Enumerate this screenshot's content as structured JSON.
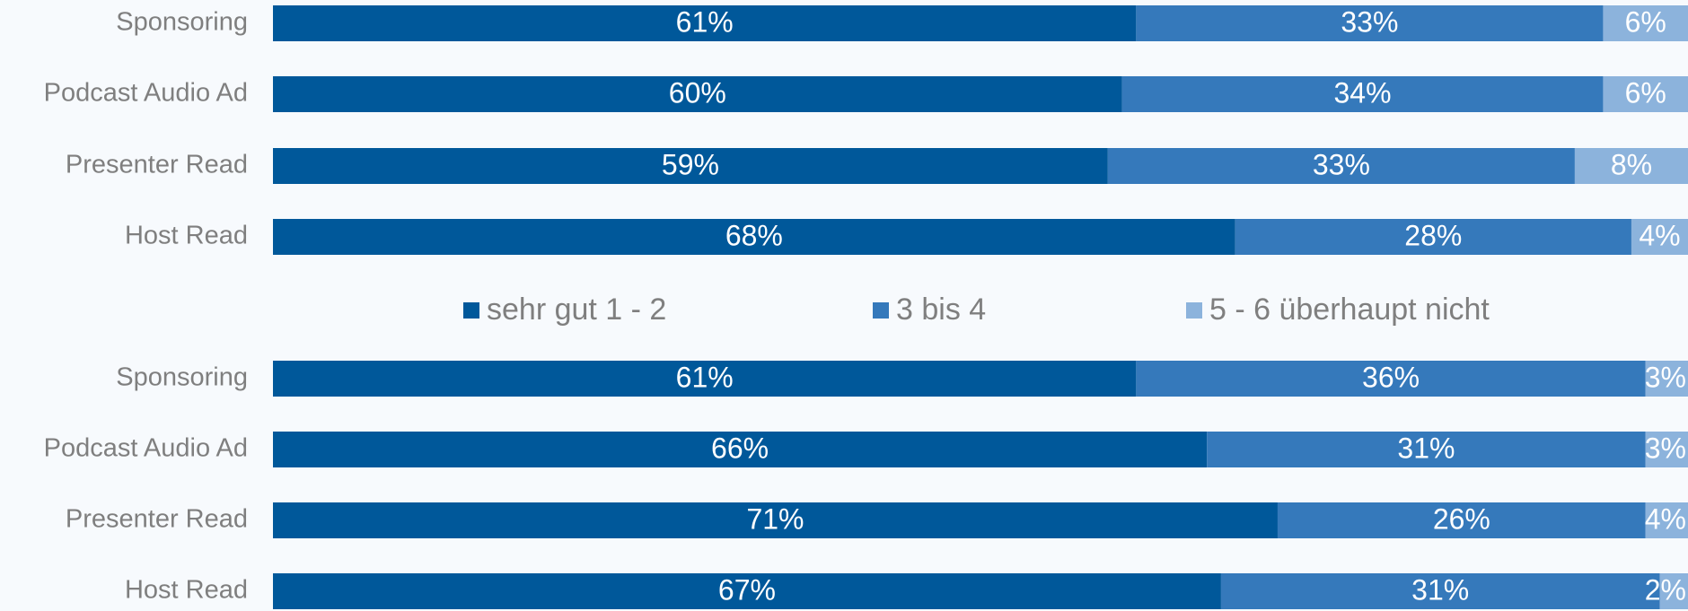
{
  "legend": {
    "items": [
      {
        "name": "sehr gut 1 - 2",
        "color": "#00589a"
      },
      {
        "name": "3 bis 4",
        "color": "#3579bb"
      },
      {
        "name": "5 - 6 überhaupt nicht",
        "color": "#8cb3dc"
      }
    ]
  },
  "chart_data": [
    {
      "type": "bar",
      "orientation": "horizontal",
      "stacked": true,
      "xlim": [
        0,
        100
      ],
      "categories": [
        "Sponsoring",
        "Podcast Audio Ad",
        "Presenter Read",
        "Host Read"
      ],
      "series": [
        {
          "values": [
            61,
            60,
            59,
            68
          ],
          "value_labels": [
            "61%",
            "60%",
            "59%",
            "68%"
          ]
        },
        {
          "values": [
            33,
            34,
            33,
            28
          ],
          "value_labels": [
            "33%",
            "34%",
            "33%",
            "28%"
          ]
        },
        {
          "values": [
            6,
            6,
            8,
            4
          ],
          "value_labels": [
            "6%",
            "6%",
            "8%",
            "4%"
          ]
        }
      ]
    },
    {
      "type": "bar",
      "orientation": "horizontal",
      "stacked": true,
      "xlim": [
        0,
        100
      ],
      "categories": [
        "Sponsoring",
        "Podcast Audio Ad",
        "Presenter Read",
        "Host Read"
      ],
      "series": [
        {
          "values": [
            61,
            66,
            71,
            67
          ],
          "value_labels": [
            "61%",
            "66%",
            "71%",
            "67%"
          ]
        },
        {
          "values": [
            36,
            31,
            26,
            31
          ],
          "value_labels": [
            "36%",
            "31%",
            "26%",
            "31%"
          ]
        },
        {
          "values": [
            3,
            3,
            4,
            2
          ],
          "value_labels": [
            "3%",
            "3%",
            "4%",
            "2%"
          ]
        }
      ]
    }
  ]
}
